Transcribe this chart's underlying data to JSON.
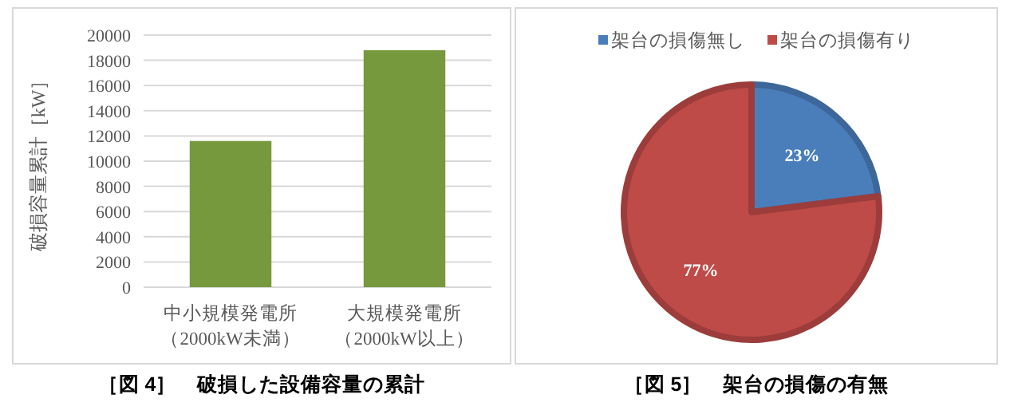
{
  "chart_data": [
    {
      "type": "bar",
      "title": "［図 4］　破損した設備容量の累計",
      "ylabel": "破損容量累計［kW］",
      "categories": [
        "中小規模発電所（2000kW未満）",
        "大規模発電所（2000kW以上）"
      ],
      "values": [
        11600,
        18800
      ],
      "color": "#77993d",
      "ylim": [
        0,
        20000
      ],
      "yticks": [
        0,
        2000,
        4000,
        6000,
        8000,
        10000,
        12000,
        14000,
        16000,
        18000,
        20000
      ],
      "grid": "y"
    },
    {
      "type": "pie",
      "title": "［図 5］　架台の損傷の有無",
      "categories": [
        "架台の損傷無し",
        "架台の損傷有り"
      ],
      "values": [
        23,
        77
      ],
      "colors": [
        "#4a7ebb",
        "#be4b48"
      ],
      "value_labels": [
        "23%",
        "77%"
      ],
      "legend": "top"
    }
  ]
}
